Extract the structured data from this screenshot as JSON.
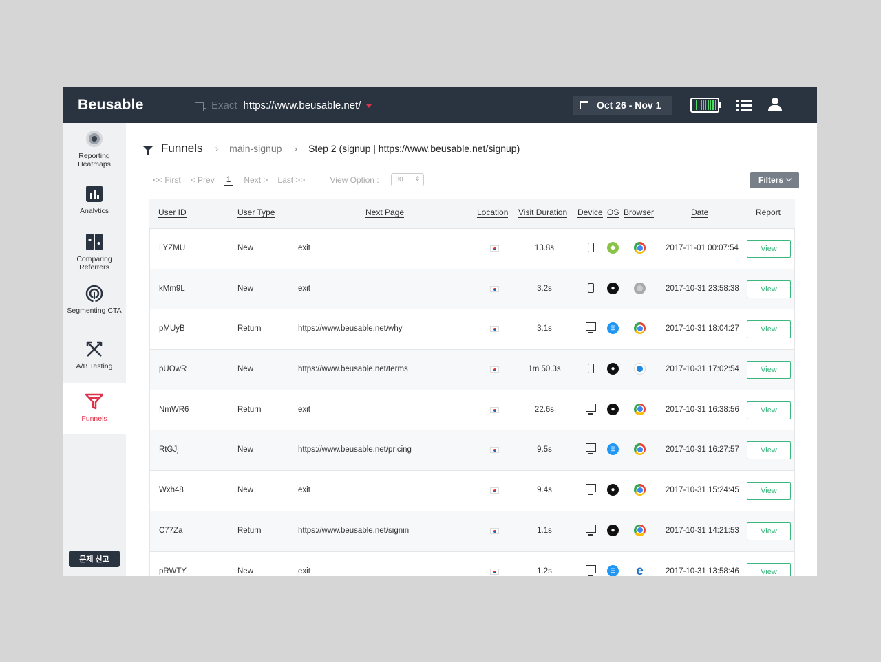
{
  "app": {
    "logo": "Beusable",
    "match_mode": "Exact",
    "url": "https://www.beusable.net/",
    "date_range": "Oct 26 - Nov 1",
    "accent_color": "#e0324a"
  },
  "sidebar": {
    "items": [
      {
        "label": "Reporting Heatmaps",
        "icon": "heatmap-icon"
      },
      {
        "label": "Analytics",
        "icon": "bar-chart-icon"
      },
      {
        "label": "Comparing Referrers",
        "icon": "compare-icon"
      },
      {
        "label": "Segmenting CTA",
        "icon": "target-icon"
      },
      {
        "label": "A/B Testing",
        "icon": "split-arrows-icon"
      },
      {
        "label": "Funnels",
        "icon": "funnel-icon",
        "active": true
      }
    ],
    "report_button": "문제 신고"
  },
  "breadcrumb": {
    "title": "Funnels",
    "funnel": "main-signup",
    "step": "Step 2 (signup | https://www.beusable.net/signup)"
  },
  "pager": {
    "first": "<< First",
    "prev": "< Prev",
    "page": "1",
    "next": "Next >",
    "last": "Last >>",
    "view_option_label": "View Option :",
    "view_option_value": "30"
  },
  "filters_label": "Filters",
  "table": {
    "headers": {
      "user_id": "User ID",
      "user_type": "User Type",
      "next_page": "Next Page",
      "location": "Location",
      "visit_duration": "Visit Duration",
      "device": "Device",
      "os": "OS",
      "browser": "Browser",
      "date": "Date",
      "report": "Report"
    },
    "rows": [
      {
        "user_id": "LYZMU",
        "user_type": "New",
        "next_page": "exit",
        "location": "KR",
        "duration": "13.8s",
        "device": "mobile",
        "os": "android",
        "browser": "chrome",
        "date": "2017-11-01 00:07:54",
        "report": "View"
      },
      {
        "user_id": "kMm9L",
        "user_type": "New",
        "next_page": "exit",
        "location": "KR",
        "duration": "3.2s",
        "device": "mobile",
        "os": "apple",
        "browser": "other",
        "date": "2017-10-31 23:58:38",
        "report": "View"
      },
      {
        "user_id": "pMUyB",
        "user_type": "Return",
        "next_page": "https://www.beusable.net/why",
        "location": "KR",
        "duration": "3.1s",
        "device": "desktop",
        "os": "windows",
        "browser": "chrome",
        "date": "2017-10-31 18:04:27",
        "report": "View"
      },
      {
        "user_id": "pUOwR",
        "user_type": "New",
        "next_page": "https://www.beusable.net/terms",
        "location": "KR",
        "duration": "1m 50.3s",
        "device": "mobile",
        "os": "apple",
        "browser": "safari",
        "date": "2017-10-31 17:02:54",
        "report": "View"
      },
      {
        "user_id": "NmWR6",
        "user_type": "Return",
        "next_page": "exit",
        "location": "KR",
        "duration": "22.6s",
        "device": "desktop",
        "os": "apple",
        "browser": "chrome",
        "date": "2017-10-31 16:38:56",
        "report": "View"
      },
      {
        "user_id": "RtGJj",
        "user_type": "New",
        "next_page": "https://www.beusable.net/pricing",
        "location": "KR",
        "duration": "9.5s",
        "device": "desktop",
        "os": "windows",
        "browser": "chrome",
        "date": "2017-10-31 16:27:57",
        "report": "View"
      },
      {
        "user_id": "Wxh48",
        "user_type": "New",
        "next_page": "exit",
        "location": "KR",
        "duration": "9.4s",
        "device": "desktop",
        "os": "apple",
        "browser": "chrome",
        "date": "2017-10-31 15:24:45",
        "report": "View"
      },
      {
        "user_id": "C77Za",
        "user_type": "Return",
        "next_page": "https://www.beusable.net/signin",
        "location": "KR",
        "duration": "1.1s",
        "device": "desktop",
        "os": "apple",
        "browser": "chrome",
        "date": "2017-10-31 14:21:53",
        "report": "View"
      },
      {
        "user_id": "pRWTY",
        "user_type": "New",
        "next_page": "exit",
        "location": "KR",
        "duration": "1.2s",
        "device": "desktop",
        "os": "windows",
        "browser": "edge",
        "date": "2017-10-31 13:58:46",
        "report": "View"
      }
    ]
  }
}
